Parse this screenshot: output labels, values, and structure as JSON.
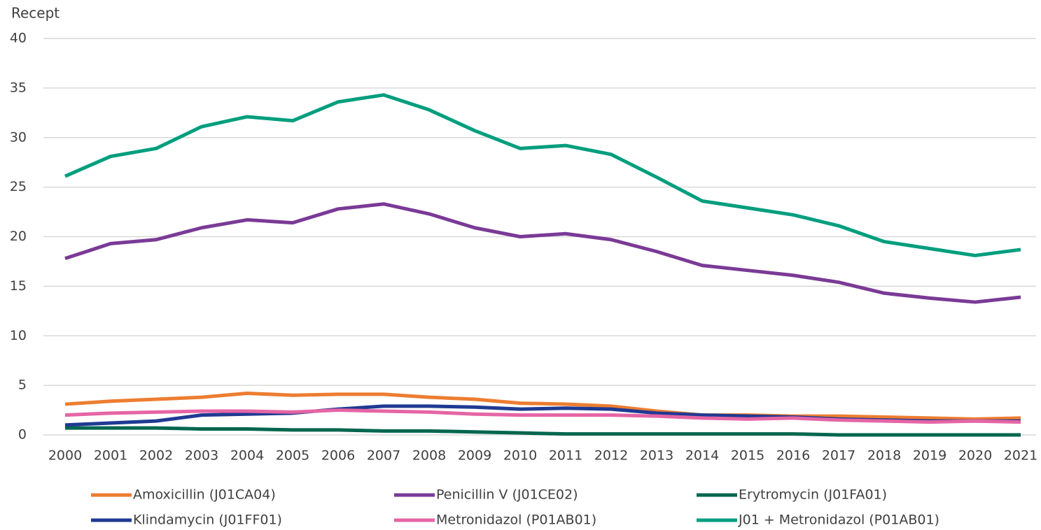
{
  "chart_data": {
    "type": "line",
    "y_label": "Recept",
    "categories": [
      "2000",
      "2001",
      "2002",
      "2003",
      "2004",
      "2005",
      "2006",
      "2007",
      "2008",
      "2009",
      "2010",
      "2011",
      "2012",
      "2013",
      "2014",
      "2015",
      "2016",
      "2017",
      "2018",
      "2019",
      "2020",
      "2021"
    ],
    "series": [
      {
        "name": "Amoxicillin (J01CA04)",
        "color": "#ed7d31",
        "values": [
          3.1,
          3.4,
          3.6,
          3.8,
          4.2,
          4.0,
          4.1,
          4.1,
          3.8,
          3.6,
          3.2,
          3.1,
          2.9,
          2.4,
          2.0,
          2.0,
          1.9,
          1.9,
          1.8,
          1.7,
          1.6,
          1.7
        ]
      },
      {
        "name": "Penicillin V (J01CE02)",
        "color": "#7a3a96",
        "values": [
          17.8,
          19.3,
          19.7,
          20.9,
          21.7,
          21.4,
          22.8,
          23.3,
          22.3,
          20.9,
          20.0,
          20.3,
          19.7,
          18.5,
          17.1,
          16.6,
          16.1,
          15.4,
          14.3,
          13.8,
          13.4,
          13.9
        ]
      },
      {
        "name": "Erytromycin (J01FA01)",
        "color": "#00664f",
        "values": [
          0.7,
          0.7,
          0.7,
          0.6,
          0.6,
          0.5,
          0.5,
          0.4,
          0.4,
          0.3,
          0.2,
          0.1,
          0.1,
          0.1,
          0.1,
          0.1,
          0.1,
          0.0,
          0.0,
          0.0,
          0.0,
          0.0
        ]
      },
      {
        "name": "Klindamycin (J01FF01)",
        "color": "#1f3a93",
        "values": [
          1.0,
          1.2,
          1.4,
          2.0,
          2.1,
          2.2,
          2.6,
          2.9,
          2.9,
          2.8,
          2.6,
          2.7,
          2.6,
          2.2,
          2.0,
          1.9,
          1.8,
          1.6,
          1.5,
          1.4,
          1.4,
          1.4
        ]
      },
      {
        "name": "Metronidazol (P01AB01)",
        "color": "#e565a5",
        "values": [
          2.0,
          2.2,
          2.3,
          2.4,
          2.4,
          2.3,
          2.5,
          2.4,
          2.3,
          2.1,
          2.0,
          2.0,
          2.0,
          1.9,
          1.7,
          1.6,
          1.7,
          1.5,
          1.4,
          1.3,
          1.4,
          1.3
        ]
      },
      {
        "name": "J01 + Metronidazol (P01AB01)",
        "color": "#009e7e",
        "values": [
          26.1,
          28.1,
          28.9,
          31.1,
          32.1,
          31.7,
          33.6,
          34.3,
          32.8,
          30.7,
          28.9,
          29.2,
          28.3,
          26.0,
          23.6,
          22.9,
          22.2,
          21.1,
          19.5,
          18.8,
          18.1,
          18.7
        ]
      }
    ],
    "ylim": [
      0,
      40
    ],
    "yticks": [
      0,
      5,
      10,
      15,
      20,
      25,
      30,
      35,
      40
    ],
    "grid": true
  }
}
